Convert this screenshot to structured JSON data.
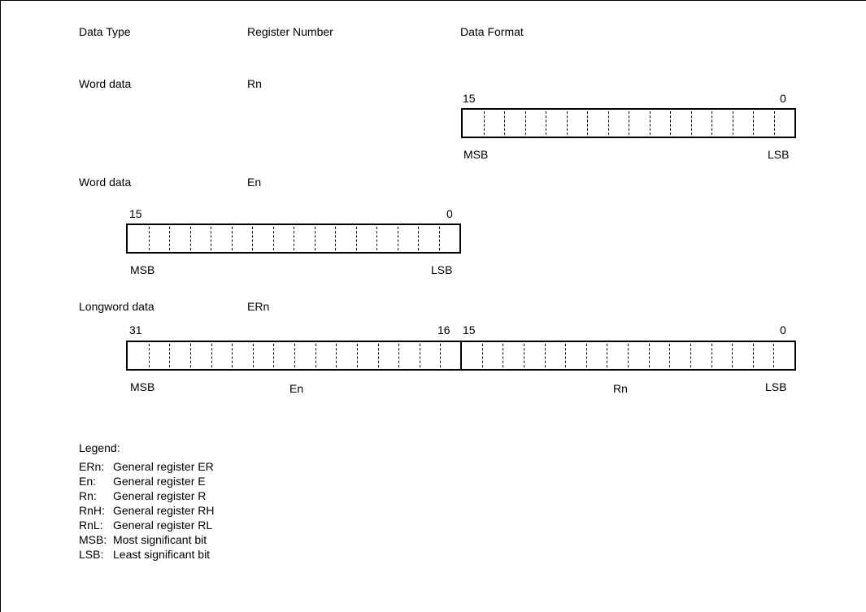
{
  "headers": {
    "data_type": "Data Type",
    "register_number": "Register Number",
    "data_format": "Data Format"
  },
  "rows": [
    {
      "data_type": "Word data",
      "register": "Rn",
      "bits": {
        "high": "15",
        "low": "0"
      },
      "labels": {
        "msb": "MSB",
        "lsb": "LSB"
      }
    },
    {
      "data_type": "Word data",
      "register": "En",
      "bits": {
        "high": "15",
        "low": "0"
      },
      "labels": {
        "msb": "MSB",
        "lsb": "LSB"
      }
    },
    {
      "data_type": "Longword data",
      "register": "ERn",
      "bits": {
        "b31": "31",
        "b16": "16",
        "b15": "15",
        "b0": "0"
      },
      "labels": {
        "msb": "MSB",
        "en": "En",
        "rn": "Rn",
        "lsb": "LSB"
      }
    }
  ],
  "legend": {
    "title": "Legend:",
    "items": [
      {
        "key": "ERn:",
        "desc": "General register ER"
      },
      {
        "key": "En:",
        "desc": "General register E"
      },
      {
        "key": "Rn:",
        "desc": "General register R"
      },
      {
        "key": "RnH:",
        "desc": "General register RH"
      },
      {
        "key": "RnL:",
        "desc": "General register RL"
      },
      {
        "key": "MSB:",
        "desc": "Most significant bit"
      },
      {
        "key": "LSB:",
        "desc": "Least significant bit"
      }
    ]
  }
}
